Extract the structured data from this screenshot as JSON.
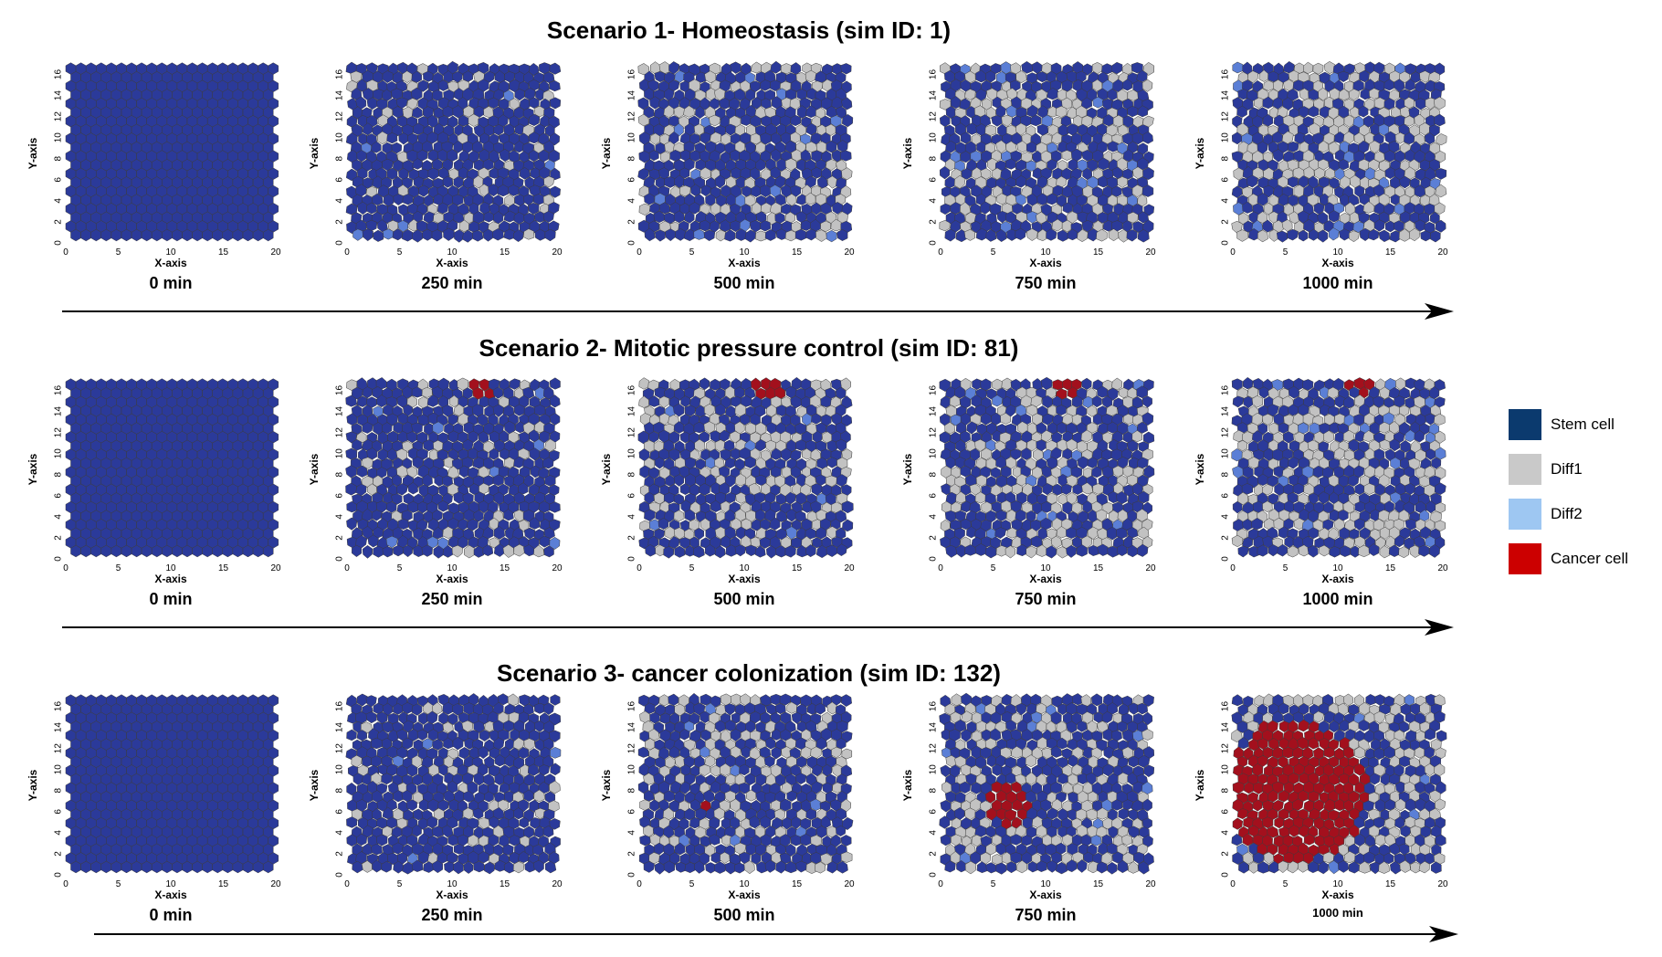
{
  "scenarios": [
    {
      "title": "Scenario 1- Homeostasis (sim ID: 1)",
      "panels": [
        {
          "time": "0 min",
          "diff1_frac": 0.0,
          "diff2_frac": 0.0,
          "cancer_size": 0,
          "cancer_pos": null
        },
        {
          "time": "250 min",
          "diff1_frac": 0.13,
          "diff2_frac": 0.02,
          "cancer_size": 0,
          "cancer_pos": null
        },
        {
          "time": "500 min",
          "diff1_frac": 0.24,
          "diff2_frac": 0.03,
          "cancer_size": 0,
          "cancer_pos": null
        },
        {
          "time": "750 min",
          "diff1_frac": 0.33,
          "diff2_frac": 0.04,
          "cancer_size": 0,
          "cancer_pos": null
        },
        {
          "time": "1000 min",
          "diff1_frac": 0.38,
          "diff2_frac": 0.05,
          "cancer_size": 0,
          "cancer_pos": null
        }
      ]
    },
    {
      "title": "Scenario 2- Mitotic pressure control (sim ID: 81)",
      "panels": [
        {
          "time": "0 min",
          "diff1_frac": 0.0,
          "diff2_frac": 0.0,
          "cancer_size": 0,
          "cancer_pos": null
        },
        {
          "time": "250 min",
          "diff1_frac": 0.14,
          "diff2_frac": 0.02,
          "cancer_size": 4,
          "cancer_pos": [
            13,
            16.5
          ]
        },
        {
          "time": "500 min",
          "diff1_frac": 0.26,
          "diff2_frac": 0.03,
          "cancer_size": 7,
          "cancer_pos": [
            12.5,
            16.5
          ]
        },
        {
          "time": "750 min",
          "diff1_frac": 0.33,
          "diff2_frac": 0.04,
          "cancer_size": 6,
          "cancer_pos": [
            12,
            16.3
          ]
        },
        {
          "time": "1000 min",
          "diff1_frac": 0.38,
          "diff2_frac": 0.06,
          "cancer_size": 5,
          "cancer_pos": [
            12,
            16.8
          ]
        }
      ]
    },
    {
      "title": "Scenario 3- cancer colonization (sim ID: 132)",
      "panels": [
        {
          "time": "0 min",
          "diff1_frac": 0.0,
          "diff2_frac": 0.0,
          "cancer_size": 0,
          "cancer_pos": null
        },
        {
          "time": "250 min",
          "diff1_frac": 0.13,
          "diff2_frac": 0.01,
          "cancer_size": 0,
          "cancer_pos": null
        },
        {
          "time": "500 min",
          "diff1_frac": 0.26,
          "diff2_frac": 0.03,
          "cancer_size": 1,
          "cancer_pos": [
            6.5,
            6.5
          ]
        },
        {
          "time": "750 min",
          "diff1_frac": 0.33,
          "diff2_frac": 0.04,
          "cancer_size": 14,
          "cancer_pos": [
            6.3,
            6.7
          ]
        },
        {
          "time": "1000 min",
          "diff1_frac": 0.35,
          "diff2_frac": 0.03,
          "cancer_size": 160,
          "cancer_pos": [
            6,
            8
          ]
        }
      ]
    }
  ],
  "axes": {
    "xlabel": "X-axis",
    "ylabel": "Y-axis",
    "xticks": [
      "0",
      "5",
      "10",
      "15",
      "20"
    ],
    "yticks": [
      "0",
      "2",
      "4",
      "6",
      "8",
      "10",
      "12",
      "14",
      "16"
    ],
    "xlim": [
      0,
      20
    ],
    "ylim": [
      0,
      17
    ]
  },
  "legend": [
    {
      "label": "Stem cell",
      "color": "#0b3a6e"
    },
    {
      "label": "Diff1",
      "color": "#c9c9c9"
    },
    {
      "label": "Diff2",
      "color": "#9ec7f2"
    },
    {
      "label": "Cancer cell",
      "color": "#cc0000"
    }
  ],
  "cell_colors": {
    "stem": "#2b3a9a",
    "diff1": "#c2c2c2",
    "diff2": "#5b7fd6",
    "cancer": "#a3101d",
    "edge": "#3c3c3c"
  }
}
